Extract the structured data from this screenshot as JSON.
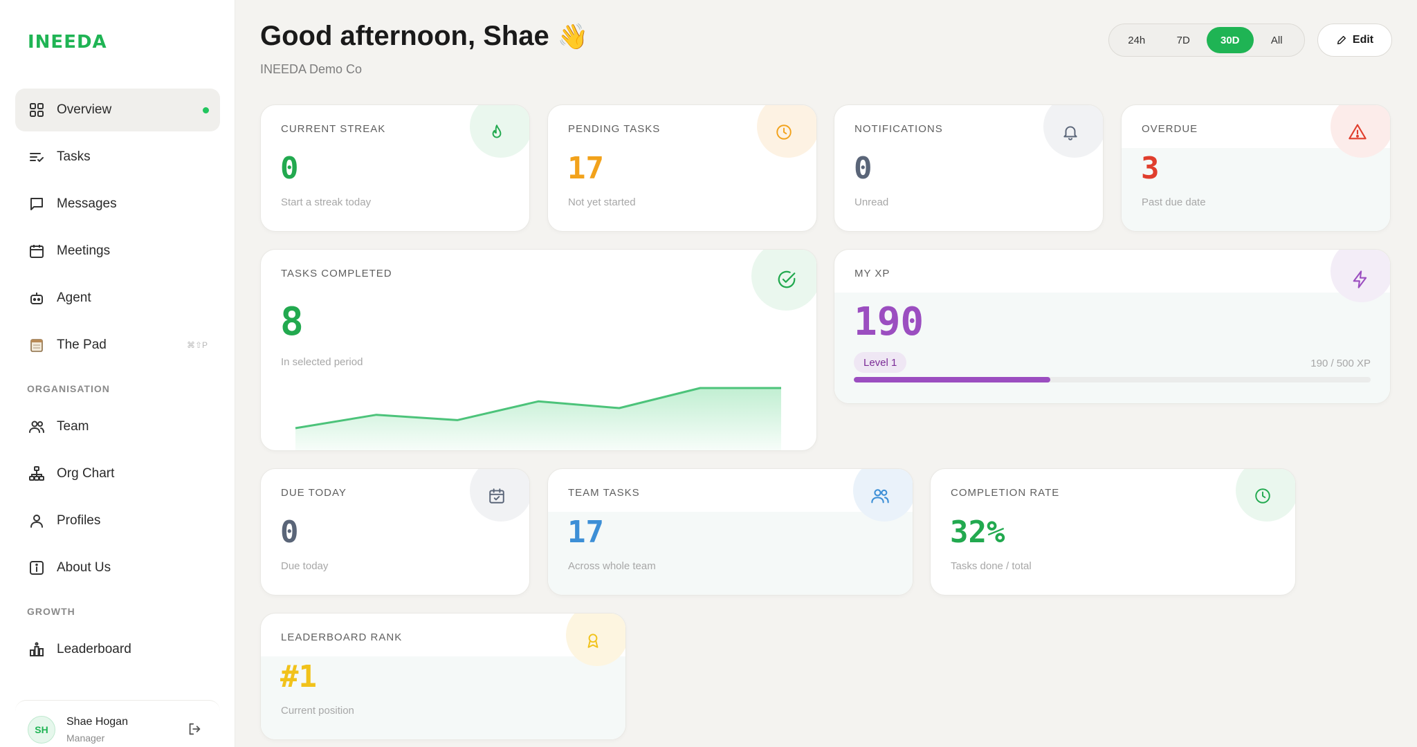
{
  "sidebar": {
    "logo": "INEEDA",
    "main_items": [
      {
        "label": "Overview",
        "icon": "grid-icon",
        "active": true
      },
      {
        "label": "Tasks",
        "icon": "tasks-list-icon"
      },
      {
        "label": "Messages",
        "icon": "message-icon"
      },
      {
        "label": "Meetings",
        "icon": "calendar-icon"
      },
      {
        "label": "Agent",
        "icon": "robot-icon"
      },
      {
        "label": "The Pad",
        "icon": "notepad-icon",
        "shortcut": "⌘⇧P"
      }
    ],
    "org_label": "ORGANISATION",
    "org_items": [
      {
        "label": "Team",
        "icon": "team-icon"
      },
      {
        "label": "Org Chart",
        "icon": "org-chart-icon"
      },
      {
        "label": "Profiles",
        "icon": "user-icon"
      },
      {
        "label": "About Us",
        "icon": "info-icon"
      }
    ],
    "growth_label": "GROWTH",
    "growth_items": [
      {
        "label": "Leaderboard",
        "icon": "leaderboard-icon"
      }
    ],
    "user": {
      "initials": "SH",
      "name": "Shae Hogan",
      "role": "Manager"
    }
  },
  "header": {
    "greeting": "Good afternoon, Shae",
    "wave": "👋",
    "company": "INEEDA Demo Co",
    "ranges": [
      "24h",
      "7D",
      "30D",
      "All"
    ],
    "active_range": "30D",
    "edit_label": "Edit"
  },
  "cards": {
    "current_streak": {
      "title": "CURRENT STREAK",
      "value": "0",
      "sub": "Start a streak today",
      "icon": "flame-icon"
    },
    "pending_tasks": {
      "title": "PENDING TASKS",
      "value": "17",
      "sub": "Not yet started",
      "icon": "clock-icon"
    },
    "notifications": {
      "title": "NOTIFICATIONS",
      "value": "0",
      "sub": "Unread",
      "icon": "bell-icon"
    },
    "overdue": {
      "title": "OVERDUE",
      "value": "3",
      "sub": "Past due date",
      "icon": "warning-icon"
    },
    "tasks_completed": {
      "title": "TASKS COMPLETED",
      "value": "8",
      "sub": "In selected period",
      "icon": "check-circle-icon"
    },
    "my_xp": {
      "title": "MY XP",
      "value": "190",
      "level": "Level 1",
      "progress_text": "190 / 500 XP",
      "progress": 0.38,
      "icon": "lightning-icon"
    },
    "due_today": {
      "title": "DUE TODAY",
      "value": "0",
      "sub": "Due today",
      "icon": "calendar-check-icon"
    },
    "team_tasks": {
      "title": "TEAM TASKS",
      "value": "17",
      "sub": "Across whole team",
      "icon": "team-icon"
    },
    "completion_rate": {
      "title": "COMPLETION RATE",
      "value": "32%",
      "sub": "Tasks done / total",
      "icon": "clock-icon"
    },
    "leaderboard_rank": {
      "title": "LEADERBOARD RANK",
      "value": "#1",
      "sub": "Current position",
      "icon": "award-icon"
    }
  },
  "colors": {
    "brand": "#1fb454",
    "green": "#22a94f",
    "orange": "#f2a21b",
    "slate": "#5a6578",
    "red": "#e03e2d",
    "purple": "#9b4ec0",
    "blue": "#3d8fd6",
    "gold": "#f1c21b"
  },
  "chart_data": {
    "type": "area",
    "values": [
      0,
      1,
      0.6,
      2,
      1.5,
      3,
      3
    ]
  }
}
